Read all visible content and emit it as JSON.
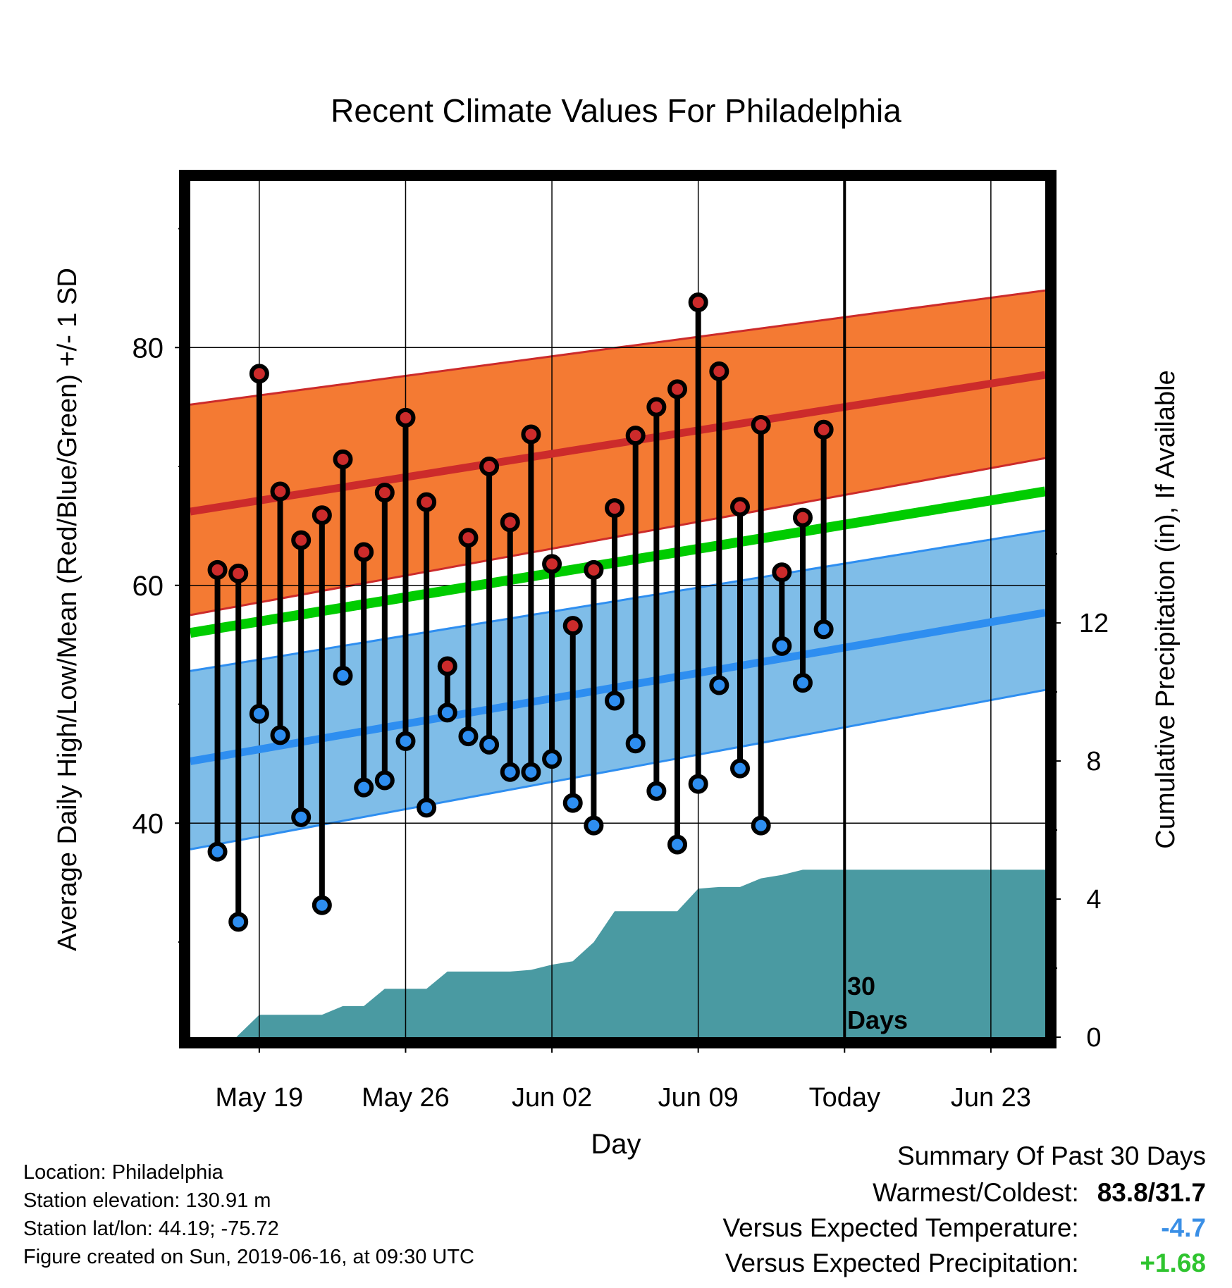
{
  "title": "Recent Climate Values For Philadelphia",
  "xlabel": "Day",
  "ylabel_left": "Average Daily High/Low/Mean (Red/Blue/Green) +/- 1 SD",
  "ylabel_right": "Cumulative Precipitation (in), If Available",
  "window_label": [
    "30",
    "Days"
  ],
  "info": {
    "location": "Location: Philadelphia",
    "elevation": "Station elevation: 130.91 m",
    "latlon": "Station lat/lon: 44.19; -75.72",
    "created": "Figure created on Sun, 2019-06-16, at 09:30 UTC"
  },
  "summary": {
    "title": "Summary Of Past 30 Days",
    "warm_cold_label": "Warmest/Coldest:",
    "warm_cold_value": "83.8/31.7",
    "temp_label": "Versus Expected Temperature:",
    "temp_value": "-4.7",
    "precip_label": "Versus Expected Precipitation:",
    "precip_value": "+1.68"
  },
  "colors": {
    "high": "#cc2b2b",
    "high_band": "#f47a33",
    "low": "#2e8ef0",
    "low_band": "#7fbde8",
    "mean": "#00cc00",
    "precip": "#4a9aa2",
    "temp_cold": "#3a8fe6",
    "precip_wet": "#2fc42f"
  },
  "chart_data": {
    "type": "line",
    "x_ticks": [
      {
        "day": 19,
        "label": "May 19"
      },
      {
        "day": 26,
        "label": "May 26"
      },
      {
        "day": 33,
        "label": "Jun 02"
      },
      {
        "day": 40,
        "label": "Jun 09"
      },
      {
        "day": 47,
        "label": "Today"
      },
      {
        "day": 54,
        "label": "Jun 23"
      }
    ],
    "x_range": [
      15.7,
      56.6
    ],
    "today_day": 47,
    "y_left": {
      "range": [
        22,
        94
      ],
      "ticks": [
        40,
        60,
        80
      ]
    },
    "y_right": {
      "range": [
        0,
        24.8
      ],
      "ticks": [
        0,
        4,
        8,
        12
      ]
    },
    "daily_temps": {
      "days": [
        17,
        18,
        19,
        20,
        21,
        22,
        23,
        24,
        25,
        26,
        27,
        28,
        29,
        30,
        31,
        32,
        33,
        34,
        35,
        36,
        37,
        38,
        39,
        40,
        41,
        42,
        43,
        44,
        45,
        46
      ],
      "high": [
        61.3,
        61.0,
        77.8,
        67.9,
        63.8,
        65.9,
        70.6,
        62.8,
        67.8,
        74.1,
        67.0,
        53.2,
        64.0,
        70.0,
        65.3,
        72.7,
        61.8,
        56.6,
        61.3,
        66.5,
        72.6,
        75.0,
        76.5,
        83.8,
        78.0,
        66.6,
        73.5,
        61.1,
        65.7,
        73.1
      ],
      "low": [
        37.6,
        31.7,
        49.2,
        47.4,
        40.5,
        33.1,
        52.4,
        43.0,
        43.6,
        46.9,
        41.3,
        49.3,
        47.3,
        46.6,
        44.3,
        44.3,
        45.4,
        41.7,
        39.8,
        50.3,
        46.7,
        42.7,
        38.2,
        43.3,
        51.6,
        44.6,
        39.8,
        54.9,
        51.8,
        56.3
      ]
    },
    "normals": {
      "days": [
        15.7,
        56.6
      ],
      "high": [
        66.2,
        77.7
      ],
      "high_plus_sd": [
        75.2,
        84.8
      ],
      "high_minus_sd": [
        57.5,
        70.7
      ],
      "mean": [
        56.0,
        67.9
      ],
      "low": [
        45.2,
        57.7
      ],
      "low_plus_sd": [
        52.8,
        64.6
      ],
      "low_minus_sd": [
        37.8,
        51.2
      ]
    },
    "cumulative_precip": {
      "days": [
        16.9,
        17.9,
        19.0,
        22.0,
        23.0,
        24.0,
        25.0,
        26.0,
        27.0,
        28.0,
        29.0,
        30.0,
        31.0,
        32.0,
        33.0,
        34.0,
        35.0,
        36.0,
        37.0,
        38.0,
        39.0,
        40.0,
        41.0,
        42.0,
        43.0,
        44.0,
        45.0,
        46.0,
        56.6
      ],
      "inches": [
        0.0,
        0.0,
        0.65,
        0.65,
        0.9,
        0.9,
        1.4,
        1.4,
        1.4,
        1.9,
        1.9,
        1.9,
        1.9,
        1.95,
        2.1,
        2.2,
        2.75,
        3.65,
        3.65,
        3.65,
        3.65,
        4.3,
        4.35,
        4.35,
        4.6,
        4.7,
        4.85,
        4.85,
        4.85
      ]
    }
  }
}
